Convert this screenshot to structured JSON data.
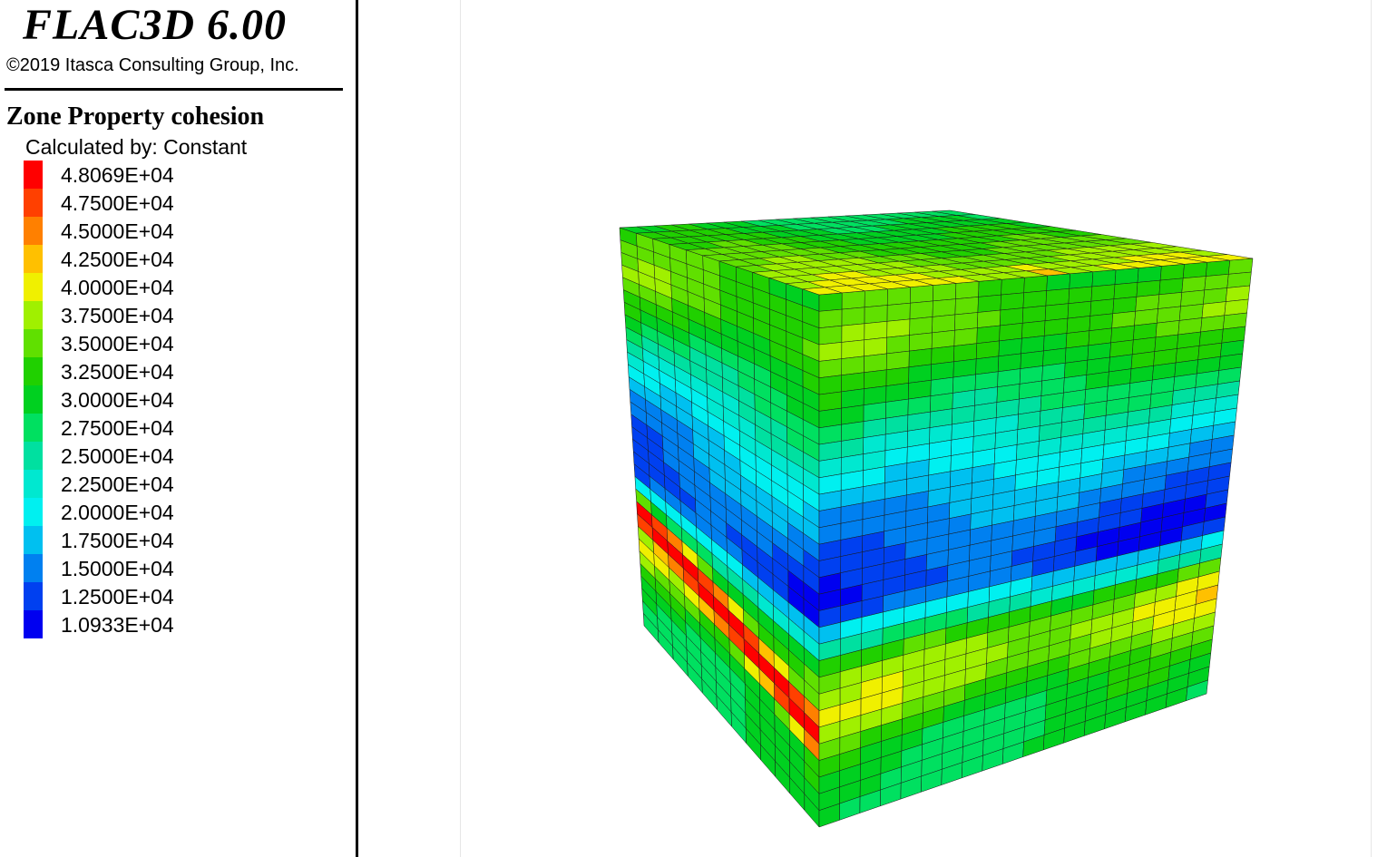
{
  "app": {
    "title": "FLAC3D 6.00",
    "copyright": "©2019 Itasca Consulting Group, Inc."
  },
  "legend": {
    "title": "Zone Property cohesion",
    "subtitle": "Calculated by: Constant",
    "entries": [
      {
        "label": "4.8069E+04",
        "color": "#ff0000"
      },
      {
        "label": "4.7500E+04",
        "color": "#ff4000"
      },
      {
        "label": "4.5000E+04",
        "color": "#ff8000"
      },
      {
        "label": "4.2500E+04",
        "color": "#ffc000"
      },
      {
        "label": "4.0000E+04",
        "color": "#f0f000"
      },
      {
        "label": "3.7500E+04",
        "color": "#a0f000"
      },
      {
        "label": "3.5000E+04",
        "color": "#60e000"
      },
      {
        "label": "3.2500E+04",
        "color": "#20d000"
      },
      {
        "label": "3.0000E+04",
        "color": "#00d020"
      },
      {
        "label": "2.7500E+04",
        "color": "#00e060"
      },
      {
        "label": "2.5000E+04",
        "color": "#00e0a0"
      },
      {
        "label": "2.2500E+04",
        "color": "#00e8d0"
      },
      {
        "label": "2.0000E+04",
        "color": "#00f0f0"
      },
      {
        "label": "1.7500E+04",
        "color": "#00c0f0"
      },
      {
        "label": "1.5000E+04",
        "color": "#0080f0"
      },
      {
        "label": "1.2500E+04",
        "color": "#0040f0"
      },
      {
        "label": "1.0933E+04",
        "color": "#0000f0"
      }
    ]
  }
}
